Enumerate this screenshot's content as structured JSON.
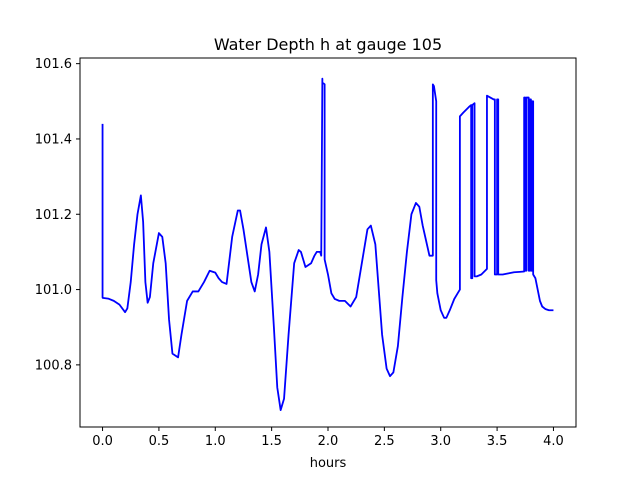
{
  "chart_data": {
    "type": "line",
    "title": "Water Depth h at gauge 105",
    "xlabel": "hours",
    "ylabel": "",
    "xlim": [
      -0.2,
      4.2
    ],
    "ylim": [
      100.635,
      101.615
    ],
    "xticks": [
      0.0,
      0.5,
      1.0,
      1.5,
      2.0,
      2.5,
      3.0,
      3.5,
      4.0
    ],
    "xtick_labels": [
      "0.0",
      "0.5",
      "1.0",
      "1.5",
      "2.0",
      "2.5",
      "3.0",
      "3.5",
      "4.0"
    ],
    "yticks": [
      100.8,
      101.0,
      101.2,
      101.4,
      101.6
    ],
    "ytick_labels": [
      "100.8",
      "101.0",
      "101.2",
      "101.4",
      "101.6"
    ],
    "grid": false,
    "legend": "none",
    "series": [
      {
        "color": "#0000ff",
        "x": [
          0.0,
          0.0,
          0.001,
          0.05,
          0.1,
          0.15,
          0.2,
          0.22,
          0.25,
          0.28,
          0.31,
          0.34,
          0.36,
          0.38,
          0.4,
          0.42,
          0.45,
          0.5,
          0.53,
          0.56,
          0.59,
          0.62,
          0.67,
          0.7,
          0.75,
          0.8,
          0.85,
          0.9,
          0.95,
          1.0,
          1.03,
          1.06,
          1.1,
          1.15,
          1.2,
          1.22,
          1.25,
          1.28,
          1.32,
          1.35,
          1.38,
          1.41,
          1.45,
          1.48,
          1.52,
          1.55,
          1.58,
          1.61,
          1.65,
          1.7,
          1.74,
          1.76,
          1.8,
          1.85,
          1.88,
          1.9,
          1.93,
          1.94,
          1.95,
          1.95,
          1.97,
          1.97,
          2.0,
          2.03,
          2.06,
          2.1,
          2.15,
          2.2,
          2.25,
          2.3,
          2.35,
          2.38,
          2.42,
          2.45,
          2.48,
          2.52,
          2.55,
          2.58,
          2.62,
          2.66,
          2.7,
          2.74,
          2.78,
          2.81,
          2.84,
          2.87,
          2.9,
          2.93,
          2.93,
          2.94,
          2.96,
          2.96,
          2.97,
          3.0,
          3.03,
          3.05,
          3.08,
          3.12,
          3.15,
          3.17,
          3.17,
          3.2,
          3.25,
          3.27,
          3.27,
          3.28,
          3.28,
          3.3,
          3.3,
          3.32,
          3.36,
          3.41,
          3.41,
          3.44,
          3.47,
          3.48,
          3.48,
          3.5,
          3.5,
          3.51,
          3.51,
          3.52,
          3.55,
          3.6,
          3.65,
          3.7,
          3.74,
          3.74,
          3.75,
          3.75,
          3.76,
          3.76,
          3.78,
          3.78,
          3.79,
          3.79,
          3.8,
          3.8,
          3.81,
          3.81,
          3.82,
          3.82,
          3.84,
          3.86,
          3.88,
          3.9,
          3.93,
          3.96,
          4.0
        ],
        "y": [
          101.44,
          100.98,
          100.978,
          100.976,
          100.97,
          100.96,
          100.94,
          100.95,
          101.02,
          101.12,
          101.2,
          101.25,
          101.18,
          101.02,
          100.965,
          100.98,
          101.07,
          101.15,
          101.14,
          101.07,
          100.92,
          100.83,
          100.82,
          100.88,
          100.97,
          100.995,
          100.995,
          101.02,
          101.05,
          101.045,
          101.03,
          101.02,
          101.015,
          101.14,
          101.21,
          101.21,
          101.16,
          101.1,
          101.02,
          100.995,
          101.04,
          101.12,
          101.165,
          101.1,
          100.9,
          100.74,
          100.68,
          100.71,
          100.88,
          101.07,
          101.105,
          101.1,
          101.06,
          101.07,
          101.09,
          101.1,
          101.1,
          101.09,
          101.56,
          101.55,
          101.545,
          101.08,
          101.04,
          100.99,
          100.975,
          100.97,
          100.97,
          100.955,
          100.98,
          101.07,
          101.16,
          101.17,
          101.12,
          101.0,
          100.88,
          100.79,
          100.77,
          100.78,
          100.85,
          100.98,
          101.1,
          101.2,
          101.23,
          101.22,
          101.17,
          101.13,
          101.09,
          101.09,
          101.545,
          101.54,
          101.5,
          101.025,
          100.99,
          100.945,
          100.925,
          100.925,
          100.945,
          100.975,
          100.99,
          101.0,
          101.46,
          101.47,
          101.485,
          101.49,
          101.03,
          101.03,
          101.49,
          101.495,
          101.035,
          101.035,
          101.04,
          101.055,
          101.515,
          101.51,
          101.505,
          101.505,
          101.04,
          101.04,
          101.505,
          101.505,
          101.04,
          101.04,
          101.04,
          101.043,
          101.046,
          101.047,
          101.048,
          101.51,
          101.51,
          101.05,
          101.05,
          101.51,
          101.51,
          101.05,
          101.05,
          101.505,
          101.505,
          101.05,
          101.05,
          101.5,
          101.5,
          101.04,
          101.03,
          101.0,
          100.97,
          100.955,
          100.948,
          100.945,
          100.945
        ]
      }
    ]
  }
}
